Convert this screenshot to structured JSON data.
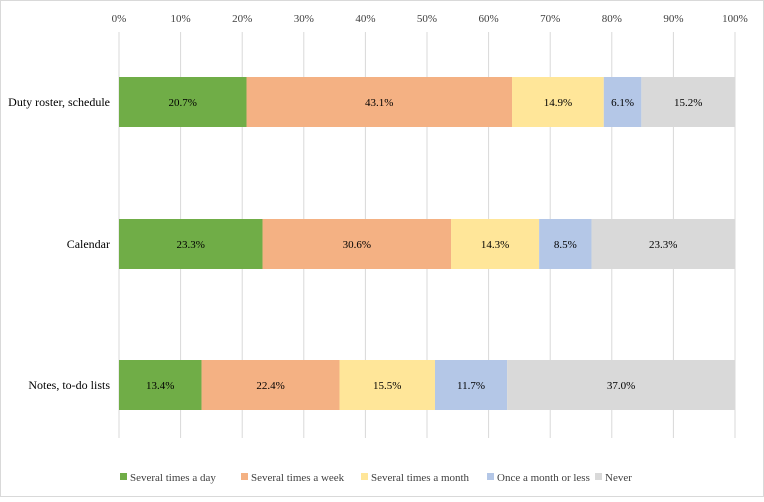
{
  "chart_data": {
    "type": "bar",
    "orientation": "horizontal",
    "stacked": "percent",
    "categories": [
      "Duty roster, schedule",
      "Calendar",
      "Notes, to-do lists"
    ],
    "series": [
      {
        "name": "Several times a day",
        "color": "#70ad47",
        "values": [
          20.7,
          23.3,
          13.4
        ],
        "labels": [
          "20.7%",
          "23.3%",
          "13.4%"
        ]
      },
      {
        "name": "Several times a week",
        "color": "#f4b183",
        "values": [
          43.1,
          30.6,
          22.4
        ],
        "labels": [
          "43.1%",
          "30.6%",
          "22.4%"
        ]
      },
      {
        "name": "Several times a month",
        "color": "#ffe699",
        "values": [
          14.9,
          14.3,
          15.5
        ],
        "labels": [
          "14.9%",
          "14.3%",
          "15.5%"
        ]
      },
      {
        "name": "Once a month or less",
        "color": "#b4c7e7",
        "values": [
          6.1,
          8.5,
          11.7
        ],
        "labels": [
          "6.1%",
          "8.5%",
          "11.7%"
        ]
      },
      {
        "name": "Never",
        "color": "#d9d9d9",
        "values": [
          15.2,
          23.3,
          37.0
        ],
        "labels": [
          "15.2%",
          "23.3%",
          "37.0%"
        ]
      }
    ],
    "xlim": [
      0,
      100
    ],
    "x_ticks": [
      0,
      10,
      20,
      30,
      40,
      50,
      60,
      70,
      80,
      90,
      100
    ],
    "x_tick_labels": [
      "0%",
      "10%",
      "20%",
      "30%",
      "40%",
      "50%",
      "60%",
      "70%",
      "80%",
      "90%",
      "100%"
    ],
    "x_axis_position": "top",
    "grid": true,
    "legend_position": "bottom"
  }
}
